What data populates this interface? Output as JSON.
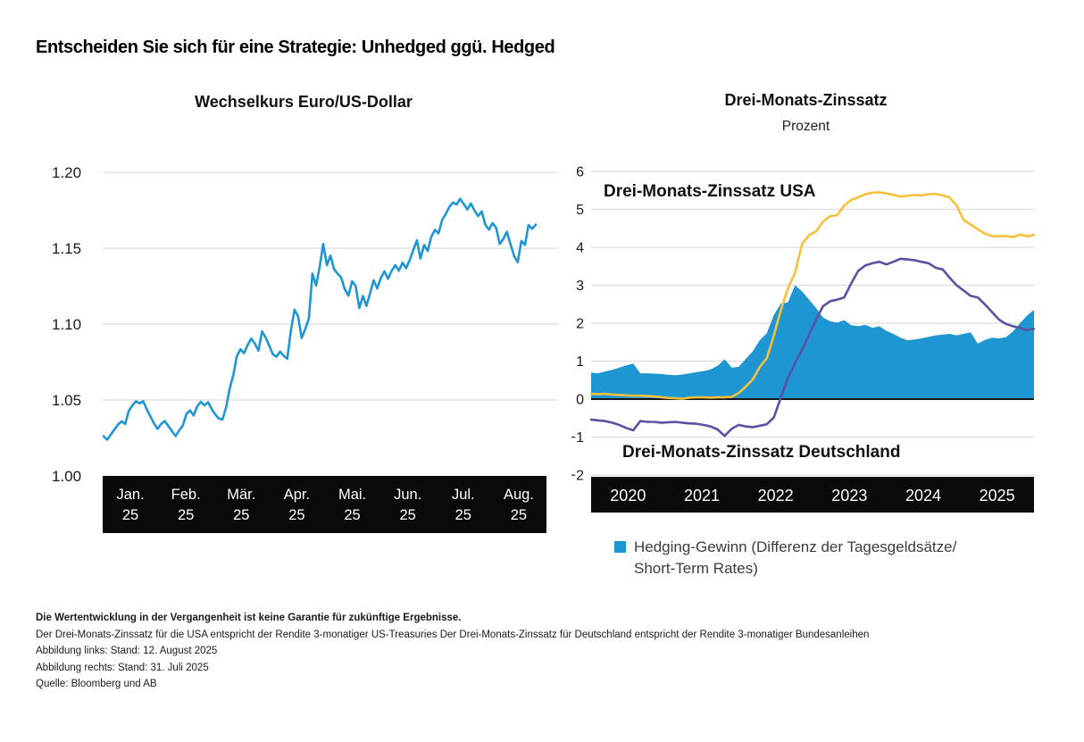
{
  "header": {
    "title": "Entscheiden Sie sich für eine Strategie: Unhedged ggü. Hedged"
  },
  "left_chart": {
    "title": "Wechselkurs Euro/US-Dollar"
  },
  "right_chart": {
    "title": "Drei-Monats-Zinssatz",
    "subtitle": "Prozent",
    "label_usa": "Drei-Monats-Zinssatz USA",
    "label_deutschland": "Drei-Monats-Zinssatz Deutschland",
    "legend": {
      "line1": "Hedging-Gewinn (Differenz der Tagesgeldsätze/",
      "line2": "Short-Term Rates)"
    }
  },
  "footnotes": {
    "lines": [
      "Die Wertentwicklung in der Vergangenheit ist keine Garantie für zukünftige Ergebnisse.",
      "Der Drei-Monats-Zinssatz für die USA entspricht der Rendite 3-monatiger US-Treasuries Der Drei-Monats-Zinssatz für Deutschland entspricht der Rendite 3-monatiger Bundesanleihen",
      "Abbildung links: Stand: 12. August 2025",
      "Abbildung rechts: Stand: 31. Juli 2025",
      "Quelle: Bloomberg und AB"
    ]
  },
  "colors": {
    "blue": "#1E96D2",
    "yellow": "#FAC03D",
    "purple": "#5B50A4",
    "grid": "#DCDCDC",
    "zero_line": "#1A1A1A",
    "axis_bar": "#0A0A0A",
    "axis_text": "#1A1A1A",
    "bar_text": "#FFFFFF"
  },
  "chart_data": [
    {
      "type": "line",
      "title": "Wechselkurs Euro/US-Dollar",
      "xlabel": "",
      "ylabel": "",
      "ylim": [
        1.0,
        1.2
      ],
      "y_ticks": [
        "1.20",
        "1.15",
        "1.10",
        "1.05",
        "1.00"
      ],
      "y_tick_values": [
        1.2,
        1.15,
        1.1,
        1.05,
        1.0
      ],
      "x_tick_labels_line1": [
        "Jan.",
        "Feb.",
        "Mär.",
        "Apr.",
        "Mai.",
        "Jun.",
        "Jul.",
        "Aug."
      ],
      "x_tick_labels_line2": [
        "25",
        "25",
        "25",
        "25",
        "25",
        "25",
        "25",
        "25"
      ],
      "grid": true,
      "series": [
        {
          "name": "EUR/USD Wechselkurs",
          "color": "blue",
          "values": [
            1.0262,
            1.0238,
            1.0272,
            1.0305,
            1.0338,
            1.036,
            1.0342,
            1.0428,
            1.0465,
            1.0492,
            1.0478,
            1.0492,
            1.0438,
            1.0392,
            1.0345,
            1.031,
            1.0342,
            1.0362,
            1.0328,
            1.0295,
            1.0262,
            1.03,
            1.0332,
            1.0408,
            1.0432,
            1.0398,
            1.0458,
            1.0488,
            1.0465,
            1.0485,
            1.0442,
            1.0405,
            1.0378,
            1.0372,
            1.0448,
            1.0575,
            1.0662,
            1.0788,
            1.0835,
            1.0808,
            1.0862,
            1.0905,
            1.0872,
            1.0825,
            1.0952,
            1.0912,
            1.0858,
            1.0802,
            1.0785,
            1.0818,
            1.0792,
            1.0772,
            1.0955,
            1.1095,
            1.1052,
            1.0908,
            1.0968,
            1.1038,
            1.1332,
            1.1255,
            1.1378,
            1.1528,
            1.1388,
            1.1452,
            1.1362,
            1.1332,
            1.1305,
            1.1228,
            1.1188,
            1.1282,
            1.1252,
            1.1105,
            1.1185,
            1.112,
            1.1205,
            1.1288,
            1.1235,
            1.1305,
            1.1348,
            1.1298,
            1.1352,
            1.1388,
            1.1352,
            1.1405,
            1.1368,
            1.1422,
            1.1488,
            1.1552,
            1.1432,
            1.1522,
            1.1482,
            1.1575,
            1.1622,
            1.1598,
            1.1685,
            1.1725,
            1.1772,
            1.1802,
            1.1788,
            1.1825,
            1.1792,
            1.1755,
            1.1795,
            1.1748,
            1.1712,
            1.1742,
            1.1655,
            1.1622,
            1.1665,
            1.1635,
            1.1528,
            1.1562,
            1.1608,
            1.1525,
            1.1448,
            1.1408,
            1.1548,
            1.1522,
            1.1652,
            1.1628,
            1.1655
          ]
        }
      ]
    },
    {
      "type": "line+area",
      "title": "Drei-Monats-Zinssatz",
      "ylabel": "Prozent",
      "ylim": [
        -2,
        6
      ],
      "y_ticks": [
        "6",
        "5",
        "4",
        "3",
        "2",
        "1",
        "0",
        "-1",
        "-2"
      ],
      "y_tick_values": [
        6,
        5,
        4,
        3,
        2,
        1,
        0,
        -1,
        -2
      ],
      "x_tick_labels": [
        "2020",
        "2021",
        "2022",
        "2023",
        "2024",
        "2025"
      ],
      "x_start": "2020-04",
      "x_end": "2025-07",
      "grid": true,
      "series": [
        {
          "name": "Hedging-Gewinn (Differenz der Tagesgeldsätze/Short-Term Rates)",
          "kind": "area",
          "color": "blue",
          "values": [
            0.7,
            0.68,
            0.73,
            0.77,
            0.83,
            0.89,
            0.94,
            0.68,
            0.68,
            0.67,
            0.66,
            0.64,
            0.63,
            0.65,
            0.68,
            0.71,
            0.74,
            0.78,
            0.88,
            1.05,
            0.83,
            0.85,
            1.06,
            1.26,
            1.56,
            1.74,
            2.22,
            2.52,
            2.55,
            3.0,
            2.84,
            2.62,
            2.4,
            2.15,
            2.05,
            2.02,
            2.08,
            1.95,
            1.92,
            1.96,
            1.88,
            1.92,
            1.8,
            1.72,
            1.62,
            1.55,
            1.57,
            1.6,
            1.64,
            1.68,
            1.7,
            1.72,
            1.68,
            1.72,
            1.76,
            1.46,
            1.56,
            1.62,
            1.6,
            1.63,
            1.78,
            2.0,
            2.2,
            2.35
          ]
        },
        {
          "name": "Drei-Monats-Zinssatz USA",
          "kind": "line",
          "color": "yellow",
          "values": [
            0.14,
            0.13,
            0.14,
            0.12,
            0.11,
            0.1,
            0.09,
            0.09,
            0.08,
            0.07,
            0.05,
            0.03,
            0.02,
            0.01,
            0.04,
            0.05,
            0.05,
            0.04,
            0.05,
            0.05,
            0.06,
            0.16,
            0.33,
            0.52,
            0.85,
            1.08,
            1.68,
            2.35,
            2.92,
            3.32,
            4.08,
            4.32,
            4.42,
            4.68,
            4.82,
            4.85,
            5.1,
            5.25,
            5.32,
            5.4,
            5.44,
            5.45,
            5.42,
            5.38,
            5.34,
            5.36,
            5.38,
            5.37,
            5.4,
            5.41,
            5.37,
            5.31,
            5.1,
            4.72,
            4.6,
            4.48,
            4.36,
            4.3,
            4.29,
            4.3,
            4.27,
            4.34,
            4.29,
            4.33
          ]
        },
        {
          "name": "Drei-Monats-Zinssatz Deutschland",
          "kind": "line",
          "color": "purple",
          "values": [
            -0.54,
            -0.56,
            -0.58,
            -0.62,
            -0.68,
            -0.76,
            -0.82,
            -0.58,
            -0.6,
            -0.6,
            -0.62,
            -0.61,
            -0.6,
            -0.62,
            -0.64,
            -0.65,
            -0.68,
            -0.72,
            -0.8,
            -0.97,
            -0.78,
            -0.68,
            -0.72,
            -0.74,
            -0.7,
            -0.66,
            -0.48,
            0.05,
            0.55,
            0.95,
            1.3,
            1.7,
            2.1,
            2.45,
            2.58,
            2.62,
            2.68,
            3.05,
            3.38,
            3.52,
            3.58,
            3.62,
            3.55,
            3.62,
            3.7,
            3.68,
            3.66,
            3.62,
            3.58,
            3.46,
            3.42,
            3.2,
            3.0,
            2.86,
            2.72,
            2.68,
            2.5,
            2.3,
            2.1,
            1.98,
            1.92,
            1.88,
            1.82,
            1.85
          ]
        }
      ]
    }
  ]
}
